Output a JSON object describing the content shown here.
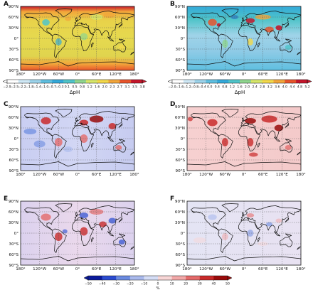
{
  "figure": {
    "panel_labels": [
      "A",
      "B",
      "C",
      "D",
      "E",
      "F"
    ],
    "lat_ticks": [
      "90°N",
      "60°N",
      "30°N",
      "0°",
      "30°S",
      "60°S",
      "90°S"
    ],
    "lon_ticks": [
      "180°",
      "120°W",
      "60°W",
      "0°",
      "60°E",
      "120°E",
      "180°"
    ],
    "colorbar_a": {
      "ticks": [
        "−2.9",
        "−2.5",
        "−2.2",
        "−1.8",
        "−1.4",
        "−1.0",
        "−0.7",
        "−0.3",
        "0.1",
        "0.5",
        "0.8",
        "1.2",
        "1.6",
        "2.0",
        "2.3",
        "2.7",
        "3.1",
        "3.5",
        "3.8"
      ],
      "label": "ΔpH",
      "colors": [
        "#ffffff",
        "#cfe8f5",
        "#9cd3ea",
        "#5fbfe0",
        "#33a9d9",
        "#4fc4c9",
        "#8fd58e",
        "#d6e66a",
        "#f3d84a",
        "#f2a53a",
        "#e8542b",
        "#c4162a"
      ]
    },
    "colorbar_b": {
      "ticks": [
        "−2.0",
        "−1.6",
        "−1.2",
        "−0.8",
        "−0.4",
        "0.0",
        "0.4",
        "0.8",
        "1.2",
        "1.6",
        "2.0",
        "2.4",
        "2.8",
        "3.2",
        "3.6",
        "4.0",
        "4.4",
        "4.8",
        "5.2"
      ],
      "label": "ΔpH",
      "colors": [
        "#ffffff",
        "#cfe8f5",
        "#9cd3ea",
        "#5fbfe0",
        "#33a9d9",
        "#4fc4c9",
        "#8fd58e",
        "#d6e66a",
        "#f3d84a",
        "#f2a53a",
        "#e8542b",
        "#c4162a"
      ]
    },
    "colorbar_diff": {
      "ticks": [
        "−50",
        "−40",
        "−30",
        "−20",
        "−10",
        "0",
        "10",
        "20",
        "30",
        "40",
        "50"
      ],
      "unit": "%",
      "colors": [
        "#0a1a9c",
        "#2a4bd0",
        "#6a8ae0",
        "#a9b9ec",
        "#d5ddf6",
        "#f8d6d6",
        "#f2a8a8",
        "#e46a6a",
        "#c92a2a",
        "#9a0a0a"
      ]
    }
  },
  "chart_data": [
    {
      "type": "heatmap",
      "panel": "A",
      "colorbar": "colorbar_a",
      "dominant": "#e8d24a"
    },
    {
      "type": "heatmap",
      "panel": "B",
      "colorbar": "colorbar_b",
      "dominant": "#9fd3e8"
    },
    {
      "type": "heatmap",
      "panel": "C",
      "colorbar": "colorbar_diff",
      "dominant": "#c9cef2"
    },
    {
      "type": "heatmap",
      "panel": "D",
      "colorbar": "colorbar_diff",
      "dominant": "#f6d0d0"
    },
    {
      "type": "heatmap",
      "panel": "E",
      "colorbar": "colorbar_diff",
      "dominant": "#e3d6ef"
    },
    {
      "type": "heatmap",
      "panel": "F",
      "colorbar": "colorbar_diff",
      "dominant": "#e6e6f4"
    }
  ]
}
